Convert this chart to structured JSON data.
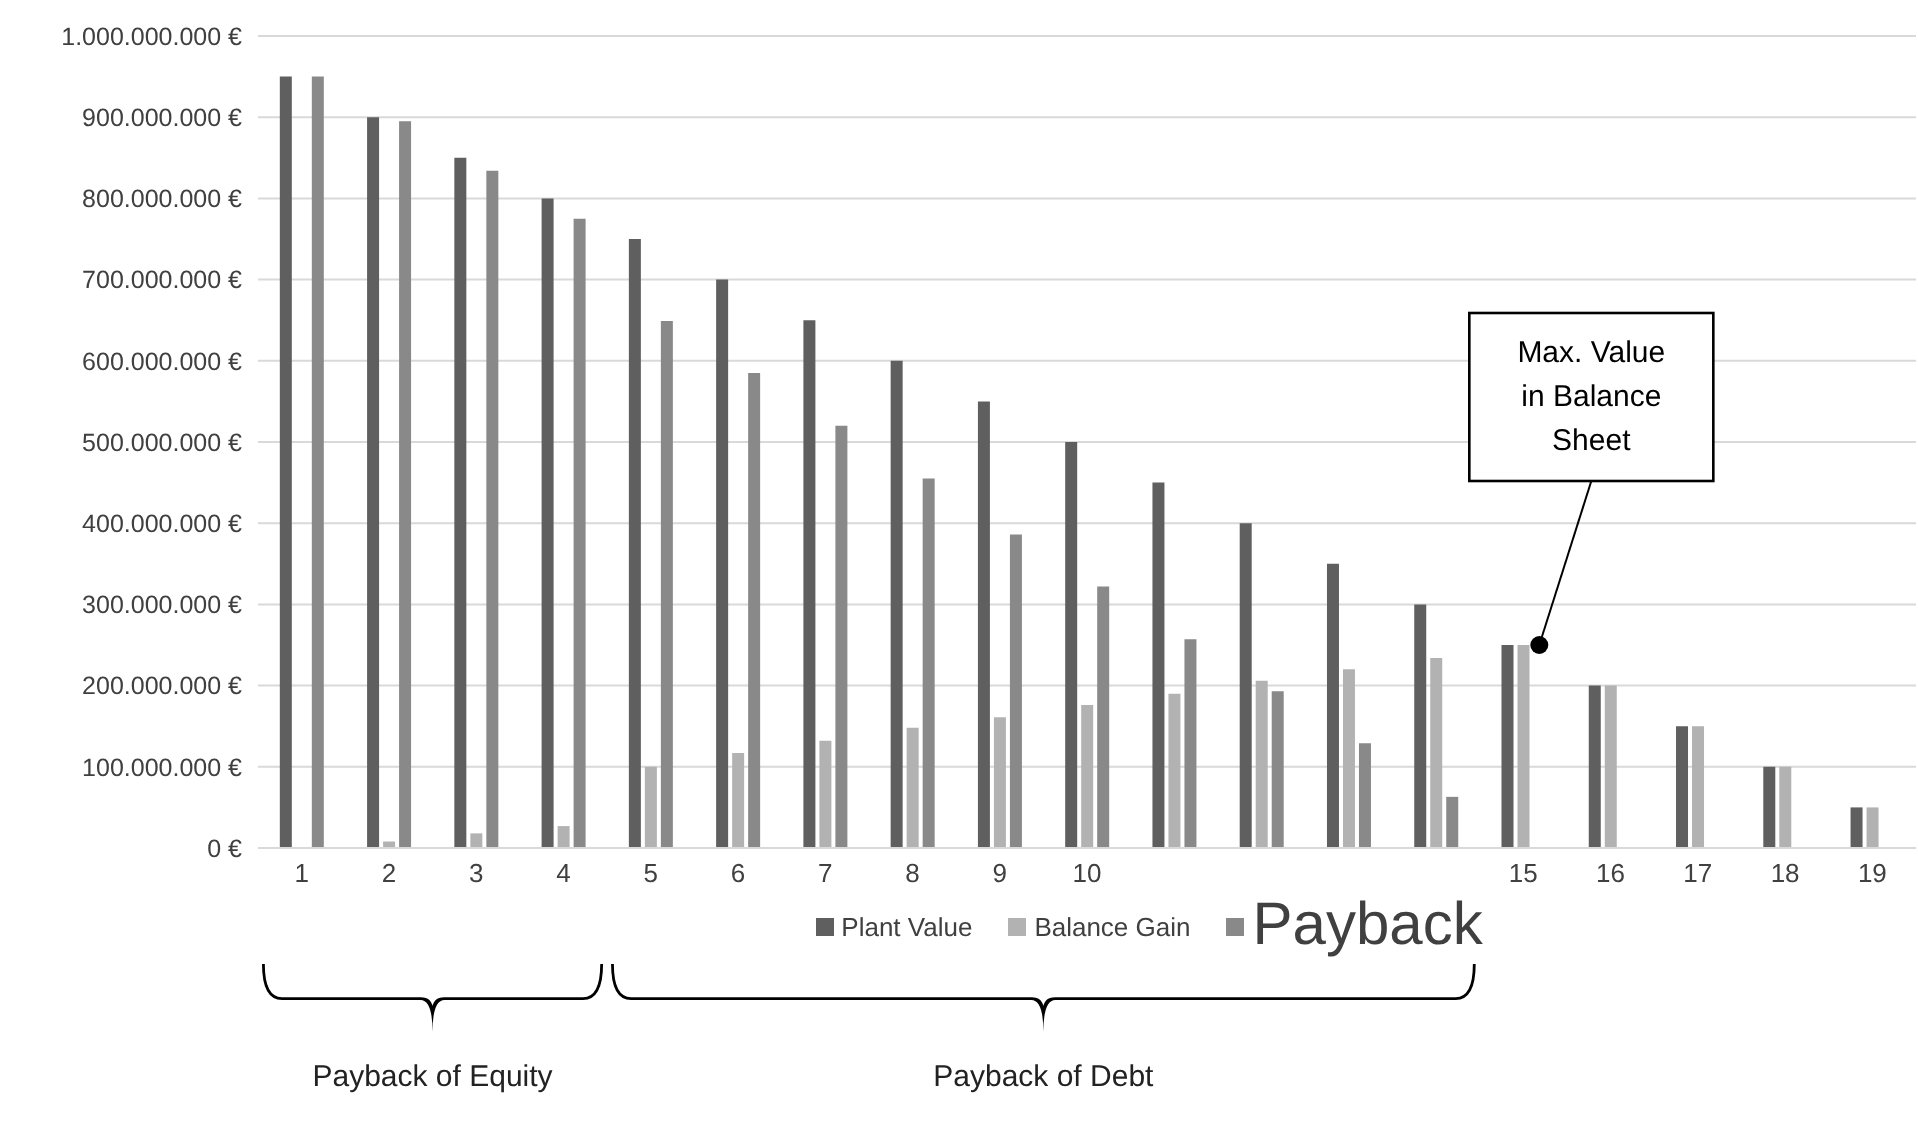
{
  "chart_data": {
    "type": "bar",
    "categories": [
      "1",
      "2",
      "3",
      "4",
      "5",
      "6",
      "7",
      "8",
      "9",
      "10",
      null,
      null,
      null,
      null,
      "15",
      "16",
      "17",
      "18",
      "19"
    ],
    "series": [
      {
        "name": "Plant Value",
        "color": "#5f5f5f",
        "values": [
          950000000,
          900000000,
          850000000,
          800000000,
          750000000,
          700000000,
          650000000,
          600000000,
          550000000,
          500000000,
          450000000,
          400000000,
          350000000,
          300000000,
          250000000,
          200000000,
          150000000,
          100000000,
          50000000
        ]
      },
      {
        "name": "Balance Gain",
        "color": "#b2b2b2",
        "values": [
          0,
          8000000,
          18000000,
          27000000,
          100000000,
          117000000,
          132000000,
          148000000,
          161000000,
          176000000,
          190000000,
          206000000,
          220000000,
          234000000,
          250000000,
          200000000,
          150000000,
          100000000,
          50000000
        ]
      },
      {
        "name": "Payback",
        "color": "#898989",
        "values": [
          950000000,
          895000000,
          834000000,
          775000000,
          649000000,
          585000000,
          520000000,
          455000000,
          386000000,
          322000000,
          257000000,
          193000000,
          129000000,
          63000000,
          0,
          0,
          0,
          0,
          0
        ]
      }
    ],
    "ylim": [
      0,
      1000000000
    ],
    "yticks": [
      {
        "value": 0,
        "label": "0 €"
      },
      {
        "value": 100000000,
        "label": "100.000.000 €"
      },
      {
        "value": 200000000,
        "label": "200.000.000 €"
      },
      {
        "value": 300000000,
        "label": "300.000.000 €"
      },
      {
        "value": 400000000,
        "label": "400.000.000 €"
      },
      {
        "value": 500000000,
        "label": "500.000.000 €"
      },
      {
        "value": 600000000,
        "label": "600.000.000 €"
      },
      {
        "value": 700000000,
        "label": "700.000.000 €"
      },
      {
        "value": 800000000,
        "label": "800.000.000 €"
      },
      {
        "value": 900000000,
        "label": "900.000.000 €"
      },
      {
        "value": 1000000000,
        "label": "1.000.000.000 €"
      }
    ],
    "grid": "y",
    "legend": "bottom",
    "annotations": [
      {
        "text": "Max. Value in Balance Sheet",
        "x": "15",
        "y": 250000000
      },
      "Payback of Equity",
      "Payback of Debt"
    ]
  }
}
